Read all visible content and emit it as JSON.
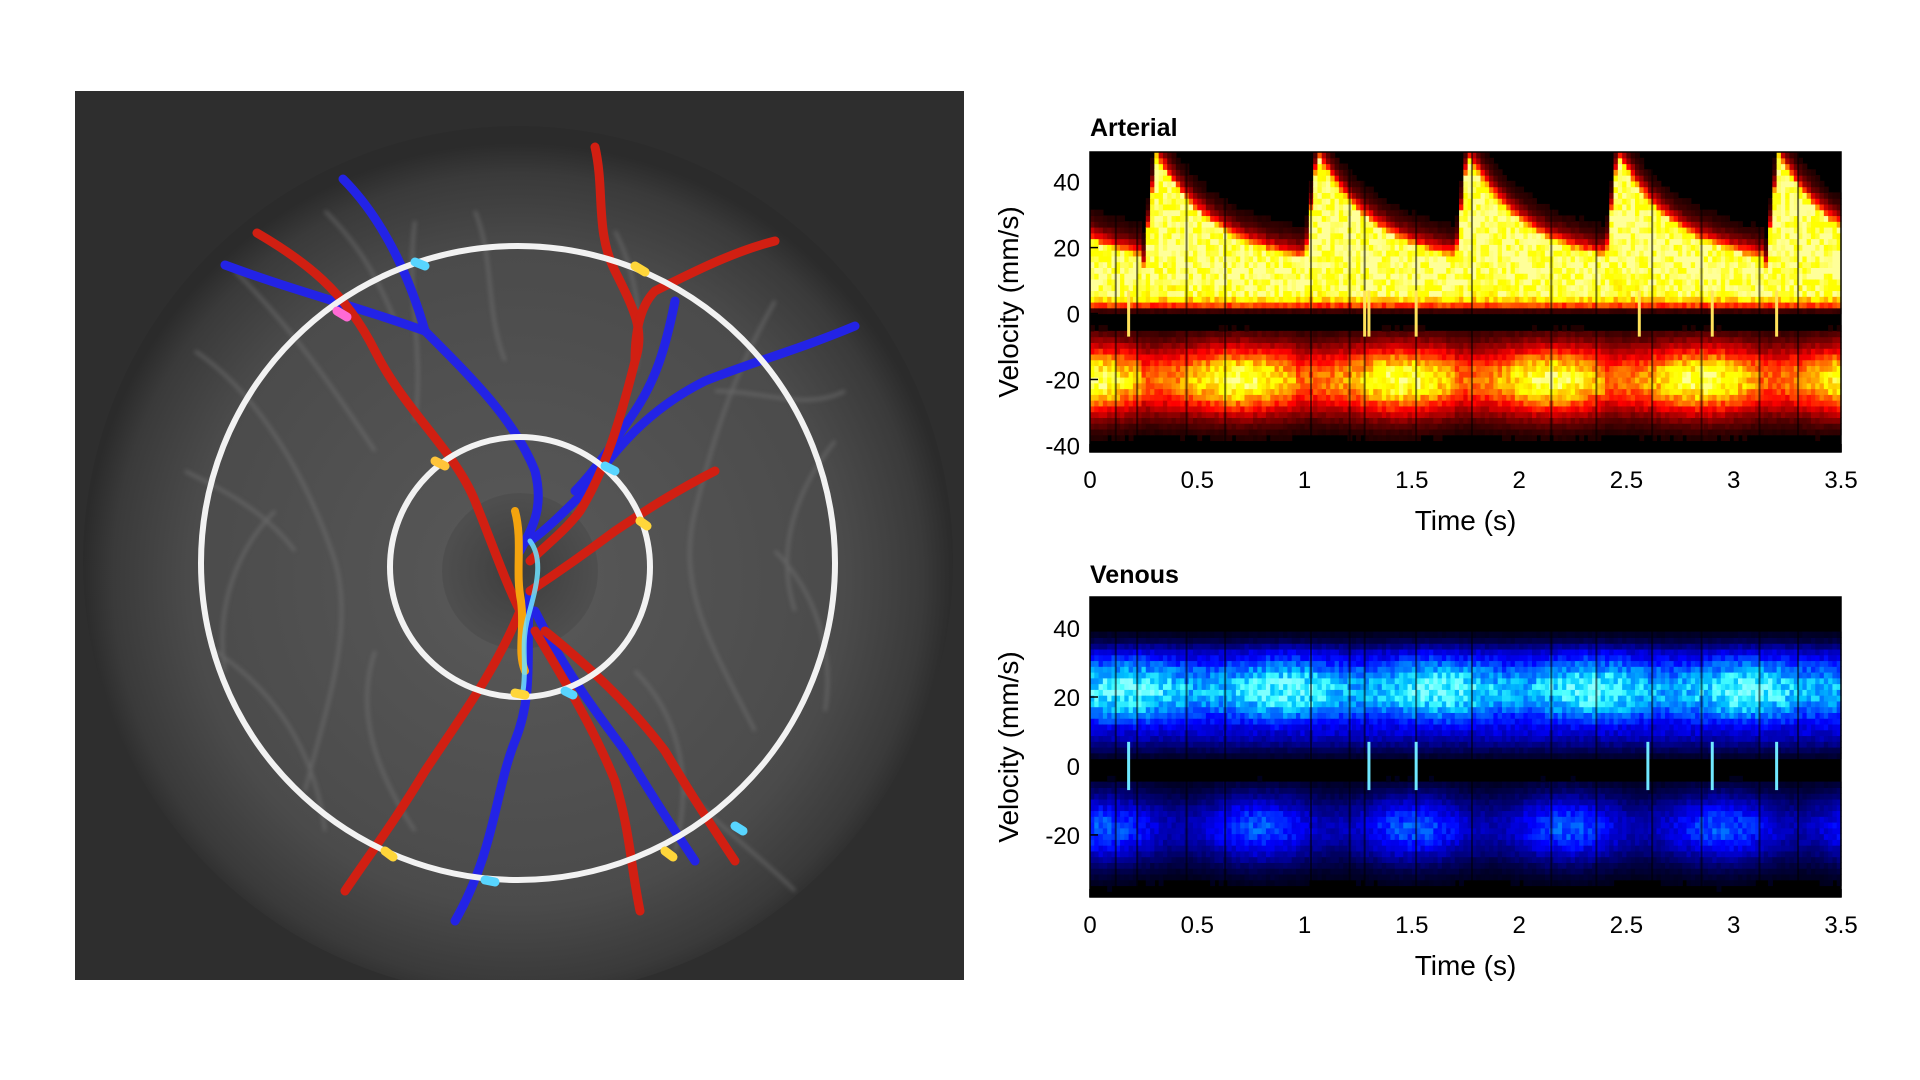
{
  "chart_data": [
    {
      "type": "heatmap",
      "title": "Arterial",
      "xlabel": "Time (s)",
      "ylabel": "Velocity (mm/s)",
      "xlim": [
        0,
        3.5
      ],
      "ylim": [
        -42,
        49
      ],
      "xticks": [
        0,
        0.5,
        1,
        1.5,
        2,
        2.5,
        3,
        3.5
      ],
      "xtick_labels": [
        "0",
        "0.5",
        "1",
        "1.5",
        "2",
        "2.5",
        "3",
        "3.5"
      ],
      "yticks": [
        40,
        20,
        0,
        -20,
        -40
      ],
      "ytick_labels": [
        "40",
        "20",
        "0",
        "-20",
        "-40"
      ],
      "colormap": "hot",
      "systole_onsets_s": [
        0.25,
        1.0,
        1.7,
        2.4,
        3.15
      ],
      "peak_velocity_mm_s": 48,
      "diastolic_velocity_mm_s": 14,
      "negative_band_center_mm_s": -20
    },
    {
      "type": "heatmap",
      "title": "Venous",
      "xlabel": "Time (s)",
      "ylabel": "Velocity (mm/s)",
      "xlim": [
        0,
        3.5
      ],
      "ylim": [
        -38,
        49
      ],
      "xticks": [
        0,
        0.5,
        1,
        1.5,
        2,
        2.5,
        3,
        3.5
      ],
      "xtick_labels": [
        "0",
        "0.5",
        "1",
        "1.5",
        "2",
        "2.5",
        "3",
        "3.5"
      ],
      "yticks": [
        40,
        20,
        0,
        -20
      ],
      "ytick_labels": [
        "40",
        "20",
        "0",
        "-20"
      ],
      "colormap": "blue",
      "mean_velocity_mm_s": 22,
      "negative_band_center_mm_s": -18
    }
  ],
  "image_panel": {
    "content": "fundus-image-with-vessel-overlay",
    "artery_color": "#d11f12",
    "vein_color": "#2323e6",
    "ring_color": "#f2f2f2"
  }
}
